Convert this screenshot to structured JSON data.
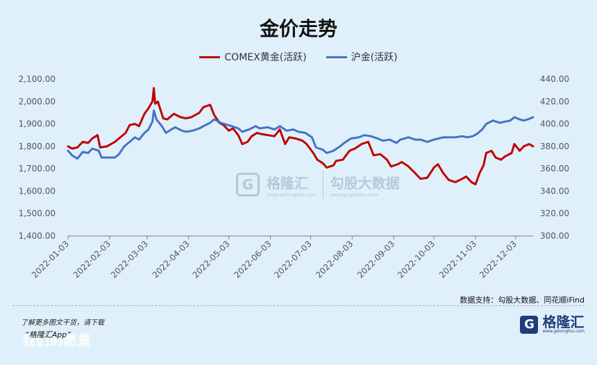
{
  "chart_data": {
    "type": "line",
    "title": "金价走势",
    "source": "数据支持：勾股大数据、同花顺iFind",
    "x_ticks": [
      "2022-01-03",
      "2022-02-03",
      "2022-03-03",
      "2022-04-03",
      "2022-05-03",
      "2022-06-03",
      "2022-07-03",
      "2022-08-03",
      "2022-09-03",
      "2022-10-03",
      "2022-11-03",
      "2022-12-03"
    ],
    "x_range": [
      "2022-01-03",
      "2022-12-16"
    ],
    "y_left": {
      "ylim": [
        1400,
        2100
      ],
      "ticks": [
        "1,400.00",
        "1,500.00",
        "1,600.00",
        "1,700.00",
        "1,800.00",
        "1,900.00",
        "2,000.00",
        "2,100.00"
      ]
    },
    "y_right": {
      "ylim": [
        300,
        440
      ],
      "ticks": [
        "300.00",
        "320.00",
        "340.00",
        "360.00",
        "380.00",
        "400.00",
        "420.00",
        "440.00"
      ]
    },
    "legend_position": "top",
    "series": [
      {
        "name": "COMEX黄金(活跃)",
        "axis": "left",
        "color": "#c00000",
        "points": [
          [
            "2022-01-03",
            1800
          ],
          [
            "2022-01-06",
            1790
          ],
          [
            "2022-01-10",
            1795
          ],
          [
            "2022-01-14",
            1820
          ],
          [
            "2022-01-18",
            1815
          ],
          [
            "2022-01-21",
            1835
          ],
          [
            "2022-01-25",
            1850
          ],
          [
            "2022-01-27",
            1795
          ],
          [
            "2022-02-01",
            1800
          ],
          [
            "2022-02-07",
            1820
          ],
          [
            "2022-02-11",
            1840
          ],
          [
            "2022-02-15",
            1860
          ],
          [
            "2022-02-18",
            1895
          ],
          [
            "2022-02-22",
            1900
          ],
          [
            "2022-02-25",
            1890
          ],
          [
            "2022-03-01",
            1945
          ],
          [
            "2022-03-04",
            1970
          ],
          [
            "2022-03-07",
            2000
          ],
          [
            "2022-03-08",
            2060
          ],
          [
            "2022-03-09",
            1990
          ],
          [
            "2022-03-11",
            2000
          ],
          [
            "2022-03-15",
            1925
          ],
          [
            "2022-03-18",
            1920
          ],
          [
            "2022-03-23",
            1945
          ],
          [
            "2022-03-28",
            1930
          ],
          [
            "2022-04-01",
            1925
          ],
          [
            "2022-04-05",
            1930
          ],
          [
            "2022-04-11",
            1950
          ],
          [
            "2022-04-14",
            1975
          ],
          [
            "2022-04-19",
            1985
          ],
          [
            "2022-04-22",
            1940
          ],
          [
            "2022-04-26",
            1905
          ],
          [
            "2022-04-29",
            1895
          ],
          [
            "2022-05-03",
            1870
          ],
          [
            "2022-05-06",
            1880
          ],
          [
            "2022-05-10",
            1850
          ],
          [
            "2022-05-13",
            1810
          ],
          [
            "2022-05-17",
            1820
          ],
          [
            "2022-05-20",
            1845
          ],
          [
            "2022-05-24",
            1860
          ],
          [
            "2022-05-27",
            1855
          ],
          [
            "2022-06-01",
            1850
          ],
          [
            "2022-06-06",
            1845
          ],
          [
            "2022-06-10",
            1875
          ],
          [
            "2022-06-14",
            1810
          ],
          [
            "2022-06-17",
            1840
          ],
          [
            "2022-06-22",
            1835
          ],
          [
            "2022-06-27",
            1825
          ],
          [
            "2022-06-30",
            1810
          ],
          [
            "2022-07-05",
            1770
          ],
          [
            "2022-07-08",
            1740
          ],
          [
            "2022-07-12",
            1725
          ],
          [
            "2022-07-15",
            1705
          ],
          [
            "2022-07-20",
            1715
          ],
          [
            "2022-07-22",
            1735
          ],
          [
            "2022-07-27",
            1740
          ],
          [
            "2022-08-01",
            1780
          ],
          [
            "2022-08-05",
            1790
          ],
          [
            "2022-08-10",
            1810
          ],
          [
            "2022-08-15",
            1820
          ],
          [
            "2022-08-19",
            1760
          ],
          [
            "2022-08-24",
            1765
          ],
          [
            "2022-08-29",
            1740
          ],
          [
            "2022-09-01",
            1710
          ],
          [
            "2022-09-06",
            1720
          ],
          [
            "2022-09-09",
            1730
          ],
          [
            "2022-09-14",
            1710
          ],
          [
            "2022-09-19",
            1680
          ],
          [
            "2022-09-23",
            1655
          ],
          [
            "2022-09-28",
            1660
          ],
          [
            "2022-10-03",
            1705
          ],
          [
            "2022-10-06",
            1720
          ],
          [
            "2022-10-10",
            1680
          ],
          [
            "2022-10-14",
            1650
          ],
          [
            "2022-10-19",
            1640
          ],
          [
            "2022-10-24",
            1655
          ],
          [
            "2022-10-27",
            1665
          ],
          [
            "2022-10-31",
            1640
          ],
          [
            "2022-11-03",
            1630
          ],
          [
            "2022-11-06",
            1680
          ],
          [
            "2022-11-09",
            1715
          ],
          [
            "2022-11-11",
            1770
          ],
          [
            "2022-11-15",
            1780
          ],
          [
            "2022-11-18",
            1750
          ],
          [
            "2022-11-22",
            1740
          ],
          [
            "2022-11-25",
            1755
          ],
          [
            "2022-11-30",
            1770
          ],
          [
            "2022-12-02",
            1810
          ],
          [
            "2022-12-06",
            1780
          ],
          [
            "2022-12-09",
            1800
          ],
          [
            "2022-12-13",
            1810
          ],
          [
            "2022-12-16",
            1800
          ]
        ]
      },
      {
        "name": "沪金(活跃)",
        "axis": "right",
        "color": "#4472c4",
        "points": [
          [
            "2022-01-03",
            376
          ],
          [
            "2022-01-06",
            372
          ],
          [
            "2022-01-10",
            369
          ],
          [
            "2022-01-14",
            375
          ],
          [
            "2022-01-18",
            374
          ],
          [
            "2022-01-21",
            378
          ],
          [
            "2022-01-26",
            376
          ],
          [
            "2022-01-28",
            370
          ],
          [
            "2022-02-07",
            370
          ],
          [
            "2022-02-10",
            373
          ],
          [
            "2022-02-14",
            380
          ],
          [
            "2022-02-17",
            383
          ],
          [
            "2022-02-22",
            388
          ],
          [
            "2022-02-25",
            386
          ],
          [
            "2022-03-01",
            392
          ],
          [
            "2022-03-04",
            395
          ],
          [
            "2022-03-07",
            402
          ],
          [
            "2022-03-08",
            412
          ],
          [
            "2022-03-10",
            404
          ],
          [
            "2022-03-14",
            398
          ],
          [
            "2022-03-17",
            392
          ],
          [
            "2022-03-21",
            395
          ],
          [
            "2022-03-24",
            397
          ],
          [
            "2022-03-29",
            394
          ],
          [
            "2022-04-01",
            393
          ],
          [
            "2022-04-06",
            394
          ],
          [
            "2022-04-11",
            396
          ],
          [
            "2022-04-14",
            398
          ],
          [
            "2022-04-19",
            401
          ],
          [
            "2022-04-22",
            404
          ],
          [
            "2022-04-27",
            401
          ],
          [
            "2022-05-05",
            398
          ],
          [
            "2022-05-10",
            396
          ],
          [
            "2022-05-13",
            393
          ],
          [
            "2022-05-18",
            395
          ],
          [
            "2022-05-23",
            398
          ],
          [
            "2022-05-26",
            396
          ],
          [
            "2022-06-01",
            397
          ],
          [
            "2022-06-06",
            395
          ],
          [
            "2022-06-10",
            398
          ],
          [
            "2022-06-15",
            394
          ],
          [
            "2022-06-20",
            395
          ],
          [
            "2022-06-24",
            393
          ],
          [
            "2022-06-29",
            392
          ],
          [
            "2022-07-04",
            388
          ],
          [
            "2022-07-07",
            379
          ],
          [
            "2022-07-12",
            377
          ],
          [
            "2022-07-15",
            374
          ],
          [
            "2022-07-20",
            376
          ],
          [
            "2022-07-25",
            380
          ],
          [
            "2022-07-28",
            383
          ],
          [
            "2022-08-02",
            387
          ],
          [
            "2022-08-08",
            388
          ],
          [
            "2022-08-12",
            390
          ],
          [
            "2022-08-17",
            389
          ],
          [
            "2022-08-22",
            387
          ],
          [
            "2022-08-26",
            385
          ],
          [
            "2022-08-31",
            386
          ],
          [
            "2022-09-05",
            383
          ],
          [
            "2022-09-08",
            386
          ],
          [
            "2022-09-14",
            388
          ],
          [
            "2022-09-19",
            386
          ],
          [
            "2022-09-23",
            386
          ],
          [
            "2022-09-28",
            384
          ],
          [
            "2022-10-03",
            386
          ],
          [
            "2022-10-10",
            388
          ],
          [
            "2022-10-14",
            388
          ],
          [
            "2022-10-19",
            388
          ],
          [
            "2022-10-24",
            389
          ],
          [
            "2022-10-28",
            388
          ],
          [
            "2022-11-01",
            389
          ],
          [
            "2022-11-04",
            391
          ],
          [
            "2022-11-08",
            395
          ],
          [
            "2022-11-11",
            400
          ],
          [
            "2022-11-16",
            403
          ],
          [
            "2022-11-21",
            401
          ],
          [
            "2022-11-25",
            402
          ],
          [
            "2022-11-29",
            403
          ],
          [
            "2022-12-02",
            406
          ],
          [
            "2022-12-06",
            404
          ],
          [
            "2022-12-09",
            403
          ],
          [
            "2022-12-12",
            404
          ],
          [
            "2022-12-16",
            406
          ]
        ]
      }
    ]
  },
  "watermark": {
    "brand_cn": "格隆汇",
    "brand_url": "www.gelonghui.com",
    "data_cn": "勾股大数据",
    "data_url": "www.gogudata.com"
  },
  "footer": {
    "note": "了解更多图文干货，请下载",
    "app": "“格隆汇App”",
    "big_text": "我们的愿景",
    "brand_cn": "格隆汇",
    "brand_url": "www.gelonghui.com"
  },
  "colors": {
    "background": "#dff0fa",
    "gold_comex": "#c00000",
    "gold_sh": "#4472c4"
  },
  "icons": {
    "brand_logo": "G-logo-icon"
  }
}
